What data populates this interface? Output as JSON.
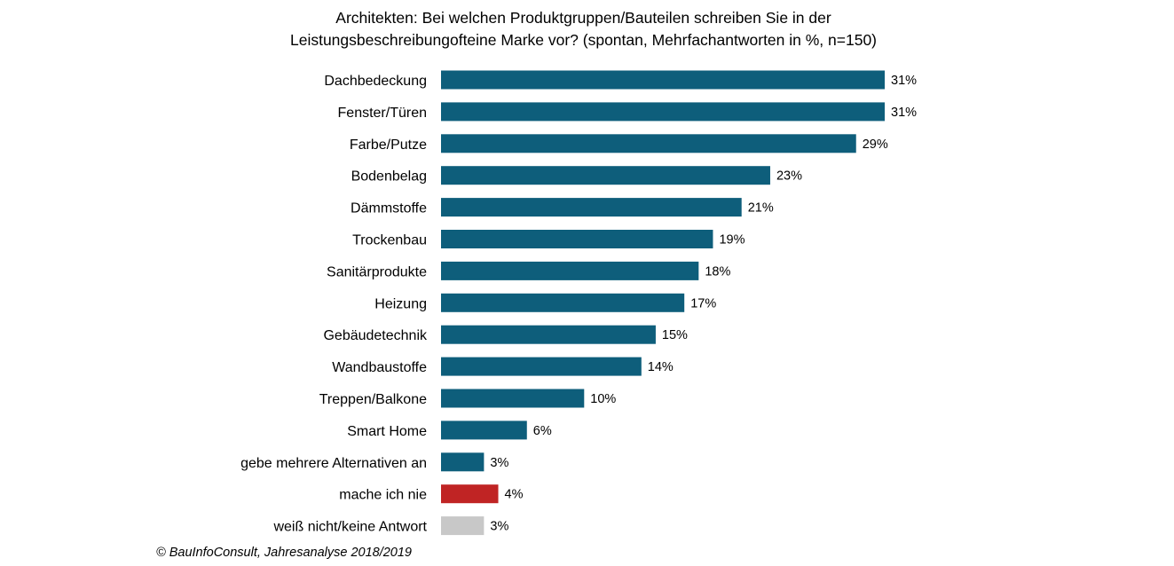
{
  "chart_data": {
    "type": "bar",
    "orientation": "horizontal",
    "title_lines": [
      "Architekten:  Bei welchen  Produktgruppen/Bauteilen  schreiben Sie in der",
      "Leistungsbeschreibungofteine  Marke vor? (spontan,  Mehrfachantworten  in %, n=150)"
    ],
    "categories": [
      "Dachbedeckung",
      "Fenster/Türen",
      "Farbe/Putze",
      "Bodenbelag",
      "Dämmstoffe",
      "Trockenbau",
      "Sanitärprodukte",
      "Heizung",
      "Gebäudetechnik",
      "Wandbaustoffe",
      "Treppen/Balkone",
      "Smart Home",
      "gebe mehrere Alternativen an",
      "mache ich nie",
      "weiß nicht/keine Antwort"
    ],
    "values": [
      31,
      31,
      29,
      23,
      21,
      19,
      18,
      17,
      15,
      14,
      10,
      6,
      3,
      4,
      3
    ],
    "value_labels": [
      "31%",
      "31%",
      "29%",
      "23%",
      "21%",
      "19%",
      "18%",
      "17%",
      "15%",
      "14%",
      "10%",
      "6%",
      "3%",
      "4%",
      "3%"
    ],
    "bar_colors": [
      "#0e5e7b",
      "#0e5e7b",
      "#0e5e7b",
      "#0e5e7b",
      "#0e5e7b",
      "#0e5e7b",
      "#0e5e7b",
      "#0e5e7b",
      "#0e5e7b",
      "#0e5e7b",
      "#0e5e7b",
      "#0e5e7b",
      "#0e5e7b",
      "#c02424",
      "#c8c8c8"
    ],
    "xlim": [
      0,
      31
    ],
    "axis_visible": false,
    "grid": false
  },
  "source": "© BauInfoConsult, Jahresanalyse 2018/2019"
}
